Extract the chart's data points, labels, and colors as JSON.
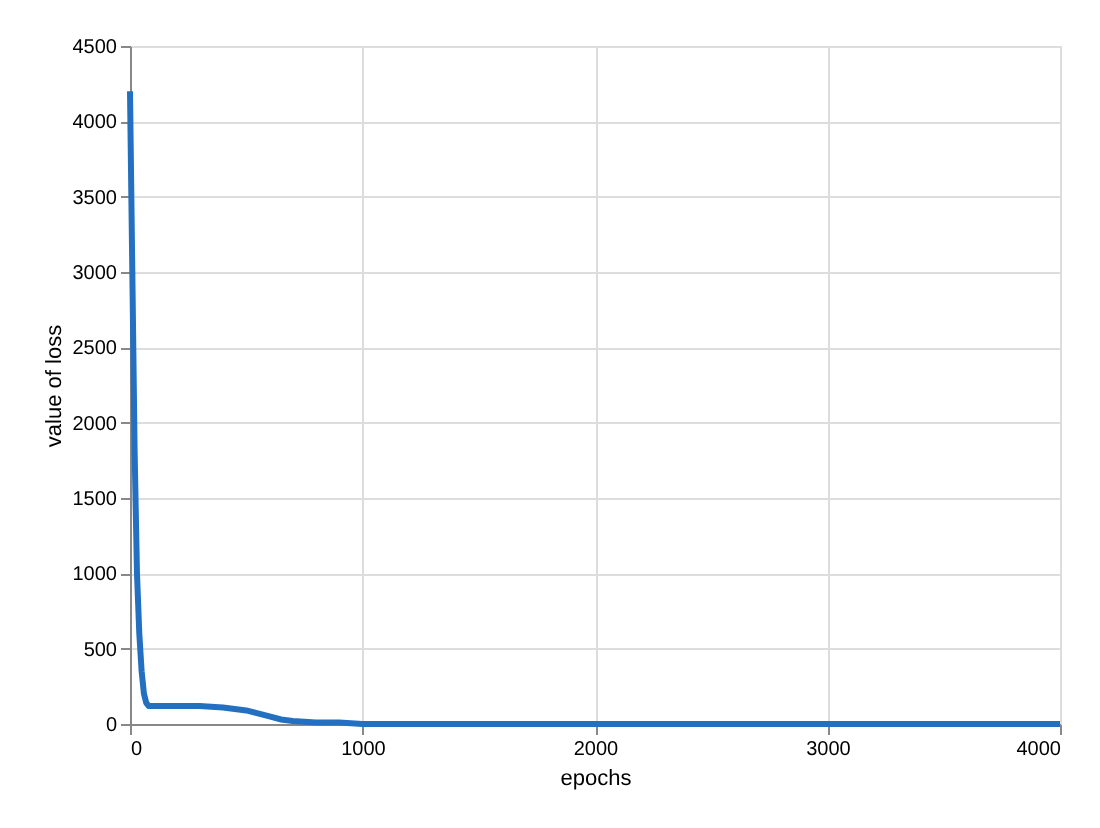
{
  "chart_data": {
    "type": "line",
    "xlabel": "epochs",
    "ylabel": "value of loss",
    "xlim": [
      0,
      4000
    ],
    "xticks": [
      0,
      1000,
      2000,
      3000,
      4000
    ],
    "ylim": [
      0,
      4500
    ],
    "yticks": [
      0,
      500,
      1000,
      1500,
      2000,
      2500,
      3000,
      3500,
      4000,
      4500
    ],
    "grid": true,
    "marker": "none",
    "line_style": "solid",
    "series": [
      {
        "color": "#2470c0",
        "x": [
          0,
          10,
          20,
          30,
          40,
          50,
          60,
          70,
          80,
          100,
          200,
          300,
          400,
          450,
          500,
          550,
          600,
          650,
          700,
          800,
          900,
          1000,
          1200,
          1500,
          2000,
          3000,
          4000
        ],
        "values": [
          4200,
          3000,
          1800,
          1000,
          600,
          350,
          200,
          140,
          120,
          120,
          120,
          120,
          110,
          100,
          90,
          70,
          50,
          30,
          20,
          10,
          10,
          0,
          0,
          0,
          0,
          0,
          0
        ]
      }
    ]
  }
}
